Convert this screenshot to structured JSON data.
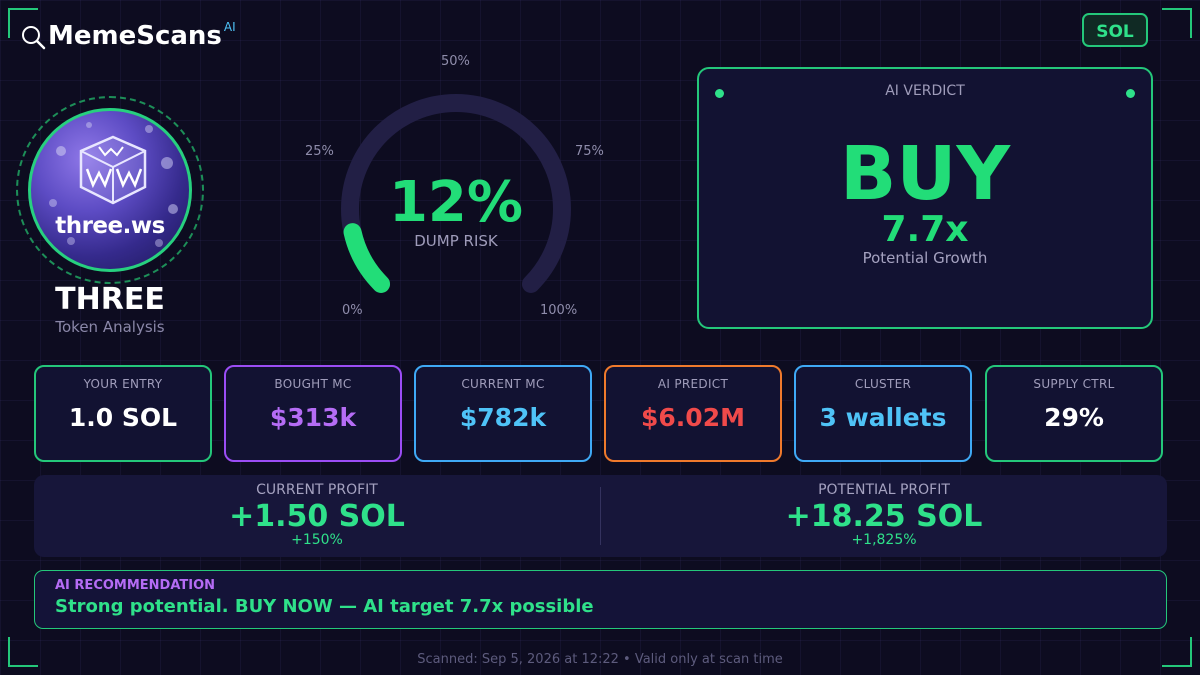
{
  "header": {
    "brand_name": "MemeScans",
    "brand_superscript": "AI",
    "chain_badge": "SOL"
  },
  "token": {
    "logo_text": "three.ws",
    "name": "THREE",
    "subtitle": "Token Analysis"
  },
  "gauge": {
    "value_text": "12%",
    "value_fraction": 0.12,
    "label": "DUMP RISK",
    "ticks": {
      "t0": "0%",
      "t25": "25%",
      "t50": "50%",
      "t75": "75%",
      "t100": "100%"
    },
    "colors": {
      "track": "#221f45",
      "fill": "#22dd78"
    }
  },
  "verdict": {
    "title": "AI VERDICT",
    "value": "BUY",
    "multiple": "7.7x",
    "caption": "Potential Growth"
  },
  "stats": [
    {
      "label": "YOUR ENTRY",
      "value": "1.0 SOL",
      "border_color": "#24c77a",
      "value_color": "#ffffff"
    },
    {
      "label": "BOUGHT MC",
      "value": "$313k",
      "border_color": "#9b4df5",
      "value_color": "#b56cf5"
    },
    {
      "label": "CURRENT MC",
      "value": "$782k",
      "border_color": "#3fa9f5",
      "value_color": "#4fc3f7"
    },
    {
      "label": "AI PREDICT",
      "value": "$6.02M",
      "border_color": "#f07a2c",
      "value_color": "#f04a4a"
    },
    {
      "label": "CLUSTER",
      "value": "3 wallets",
      "border_color": "#3fa9f5",
      "value_color": "#4fc3f7"
    },
    {
      "label": "SUPPLY CTRL",
      "value": "29%",
      "border_color": "#24c77a",
      "value_color": "#ffffff"
    }
  ],
  "profit": {
    "current": {
      "label": "CURRENT PROFIT",
      "value": "+1.50 SOL",
      "pct": "+150%"
    },
    "potential": {
      "label": "POTENTIAL PROFIT",
      "value": "+18.25 SOL",
      "pct": "+1,825%"
    }
  },
  "recommendation": {
    "title": "AI RECOMMENDATION",
    "text": "Strong potential. BUY NOW — AI target 7.7x possible"
  },
  "footer": {
    "text": "Scanned: Sep 5, 2026 at 12:22  •  Valid only at scan time"
  }
}
